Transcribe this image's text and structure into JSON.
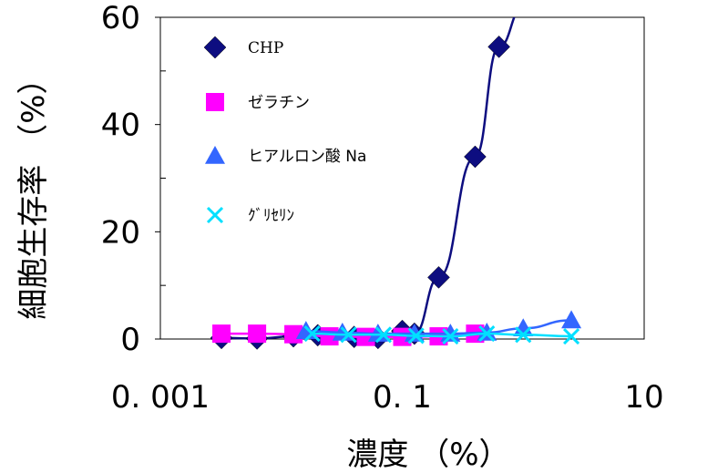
{
  "chart_data": {
    "type": "line",
    "xlabel": "濃度 （%）",
    "ylabel": "細胞生存率 （%）",
    "x_scale": "log",
    "xlim": [
      0.001,
      10
    ],
    "ylim": [
      0,
      60
    ],
    "x_ticks": [
      {
        "value": 0.001,
        "label": "0. 001"
      },
      {
        "value": 0.1,
        "label": "0. 1"
      },
      {
        "value": 10,
        "label": "10"
      }
    ],
    "y_ticks": [
      {
        "value": 0,
        "label": "0"
      },
      {
        "value": 20,
        "label": "20"
      },
      {
        "value": 40,
        "label": "40"
      },
      {
        "value": 60,
        "label": "60"
      }
    ],
    "grid": false,
    "legend_position": "top-left inside",
    "series": [
      {
        "name": "CHP",
        "marker": "diamond",
        "color": "#0d0d80",
        "x": [
          0.0032,
          0.0063,
          0.0126,
          0.02,
          0.04,
          0.063,
          0.1,
          0.126,
          0.2,
          0.4,
          0.63,
          1.0
        ],
        "y": [
          0.2,
          0.1,
          0.5,
          0.7,
          0.4,
          0.2,
          1.5,
          1.0,
          11.5,
          34.0,
          54.5,
          62.0
        ]
      },
      {
        "name": "ゼラチン",
        "marker": "square",
        "color": "#ff00ff",
        "x": [
          0.0032,
          0.0063,
          0.0126,
          0.025,
          0.05,
          0.1,
          0.2,
          0.4
        ],
        "y": [
          1.0,
          1.0,
          0.9,
          0.5,
          0.4,
          0.4,
          0.5,
          1.0
        ]
      },
      {
        "name": "ヒアルロン酸 Na",
        "marker": "triangle",
        "color": "#3366ff",
        "x": [
          0.016,
          0.032,
          0.063,
          0.126,
          0.25,
          0.5,
          1.0,
          2.5
        ],
        "y": [
          1.5,
          1.2,
          1.0,
          1.0,
          1.0,
          1.2,
          2.0,
          3.5
        ]
      },
      {
        "name": "ｸﾞﾘｾﾘﾝ",
        "marker": "x",
        "color": "#00e0ff",
        "x": [
          0.018,
          0.036,
          0.07,
          0.13,
          0.25,
          0.5,
          1.0,
          2.5
        ],
        "y": [
          1.0,
          0.8,
          0.8,
          0.6,
          0.5,
          1.0,
          0.8,
          0.5
        ]
      }
    ]
  }
}
